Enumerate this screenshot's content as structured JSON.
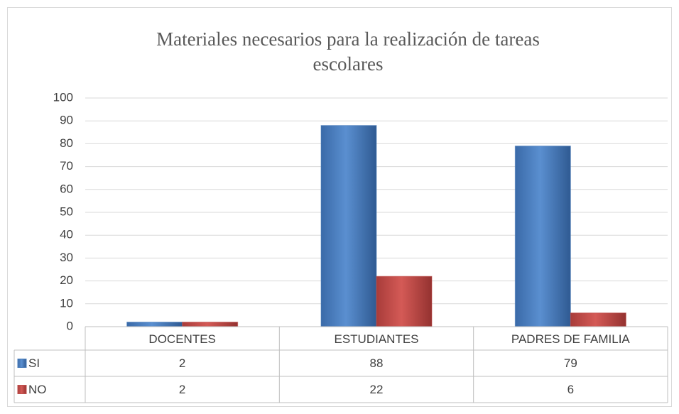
{
  "chart_data": {
    "type": "bar",
    "title": "Materiales necesarios para la realización de tareas escolares",
    "categories": [
      "DOCENTES",
      "ESTUDIANTES",
      "PADRES DE FAMILIA"
    ],
    "series": [
      {
        "name": "SI",
        "color": "#4f81bd",
        "values": [
          2,
          88,
          79
        ]
      },
      {
        "name": "NO",
        "color": "#c0504d",
        "values": [
          2,
          22,
          6
        ]
      }
    ],
    "ylim": [
      0,
      100
    ],
    "yticks": [
      0,
      10,
      20,
      30,
      40,
      50,
      60,
      70,
      80,
      90,
      100
    ],
    "grid": true,
    "data_table": true
  }
}
